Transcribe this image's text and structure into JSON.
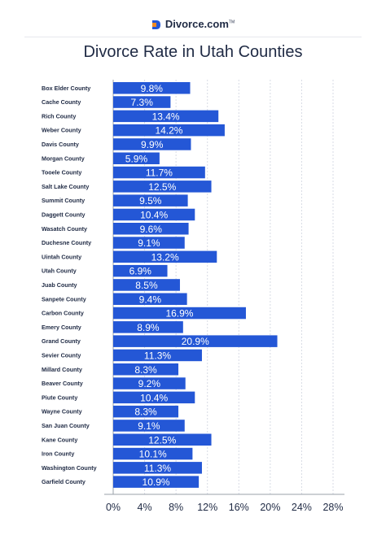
{
  "header": {
    "brand": "Divorce.com",
    "brand_tm": "TM"
  },
  "colors": {
    "bar": "#2457d6",
    "bar_text": "#ffffff",
    "text": "#1f2a44",
    "grid": "#d7dbe4",
    "axis": "#9aa0aa",
    "logo_orange": "#f08a24",
    "logo_blue": "#2457d6"
  },
  "chart_data": {
    "type": "bar",
    "orientation": "horizontal",
    "title": "Divorce Rate in Utah Counties",
    "xlabel": "",
    "ylabel": "",
    "xlim": [
      0,
      28
    ],
    "grid": true,
    "categories": [
      "Box Elder County",
      "Cache County",
      "Rich County",
      "Weber County",
      "Davis County",
      "Morgan County",
      "Tooele County",
      "Salt Lake County",
      "Summit County",
      "Daggett County",
      "Wasatch County",
      "Duchesne County",
      "Uintah County",
      "Utah County",
      "Juab County",
      "Sanpete County",
      "Carbon County",
      "Emery County",
      "Grand County",
      "Sevier County",
      "Millard County",
      "Beaver County",
      "Piute County",
      "Wayne County",
      "San Juan County",
      "Kane County",
      "Iron County",
      "Washington County",
      "Garfield County"
    ],
    "values": [
      9.8,
      7.3,
      13.4,
      14.2,
      9.9,
      5.9,
      11.7,
      12.5,
      9.5,
      10.4,
      9.6,
      9.1,
      13.2,
      6.9,
      8.5,
      9.4,
      16.9,
      8.9,
      20.9,
      11.3,
      8.3,
      9.2,
      10.4,
      8.3,
      9.1,
      12.5,
      10.1,
      11.3,
      10.9
    ],
    "value_labels": [
      "9.8%",
      "7.3%",
      "13.4%",
      "14.2%",
      "9.9%",
      "5.9%",
      "11.7%",
      "12.5%",
      "9.5%",
      "10.4%",
      "9.6%",
      "9.1%",
      "13.2%",
      "6.9%",
      "8.5%",
      "9.4%",
      "16.9%",
      "8.9%",
      "20.9%",
      "11.3%",
      "8.3%",
      "9.2%",
      "10.4%",
      "8.3%",
      "9.1%",
      "12.5%",
      "10.1%",
      "11.3%",
      "10.9%"
    ],
    "x_ticks": [
      0,
      4,
      8,
      12,
      16,
      20,
      24,
      28
    ],
    "x_tick_labels": [
      "0%",
      "4%",
      "8%",
      "12%",
      "16%",
      "20%",
      "24%",
      "28%"
    ]
  }
}
